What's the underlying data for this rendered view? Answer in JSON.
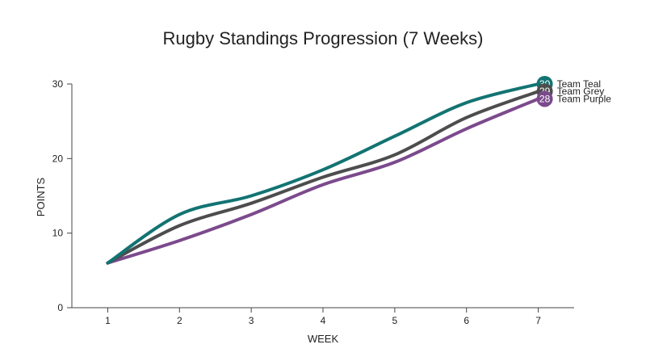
{
  "chart_data": {
    "type": "line",
    "title": "Rugby Standings Progression (7 Weeks)",
    "xlabel": "WEEK",
    "ylabel": "POINTS",
    "x": [
      1,
      2,
      3,
      4,
      5,
      6,
      7
    ],
    "xlim": [
      0.5,
      7.5
    ],
    "ylim": [
      0,
      30
    ],
    "yticks": [
      0,
      10,
      20,
      30
    ],
    "grid": false,
    "legend": "end-labels",
    "series": [
      {
        "name": "Team Teal",
        "values": [
          6,
          12.5,
          15,
          18.5,
          23,
          27.5,
          30
        ],
        "end_label": "30",
        "color": "#127472"
      },
      {
        "name": "Team Grey",
        "values": [
          6,
          11,
          14,
          17.5,
          20.5,
          25.5,
          29
        ],
        "end_label": "29",
        "color": "#4d4d4d"
      },
      {
        "name": "Team Purple",
        "values": [
          6,
          9,
          12.5,
          16.5,
          19.5,
          24,
          28
        ],
        "end_label": "28",
        "color": "#7b4a8c"
      }
    ]
  }
}
